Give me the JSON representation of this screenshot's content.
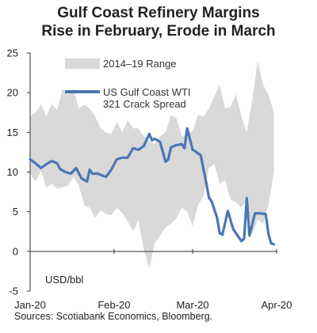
{
  "title_line1": "Gulf Coast Refinery Margins",
  "title_line2": "Rise in February, Erode in March",
  "source": "Sources: Scotiabank Economics, Bloomberg.",
  "chart_data": {
    "type": "area",
    "unit_label": "USD/bbl",
    "y_ticks": [
      "25",
      "20",
      "15",
      "10",
      "5",
      "0",
      "-5"
    ],
    "ylim": [
      -5,
      25
    ],
    "x_ticks": [
      {
        "label": "Jan-20",
        "day": 0
      },
      {
        "label": "Feb-20",
        "day": 31
      },
      {
        "label": "Mar-20",
        "day": 60
      },
      {
        "label": "Apr-20",
        "day": 91
      }
    ],
    "xlim_days": [
      0,
      91
    ],
    "grid": false,
    "legend_position": "top-left",
    "series": [
      {
        "name": "2014–19 Range",
        "kind": "band",
        "color": "#d9d9d9",
        "x_days": [
          0,
          2,
          4,
          6,
          8,
          10,
          12,
          14,
          16,
          18,
          20,
          22,
          24,
          26,
          28,
          30,
          32,
          34,
          36,
          38,
          40,
          42,
          44,
          46,
          48,
          50,
          52,
          54,
          56,
          58,
          60,
          62,
          64,
          66,
          68,
          70,
          72,
          74,
          76,
          78,
          80,
          82,
          84,
          86,
          88,
          90
        ],
        "upper": [
          17,
          17.5,
          18.5,
          17,
          18.6,
          17.8,
          20.5,
          19.8,
          20.5,
          18,
          18.5,
          18,
          17,
          15.5,
          15,
          14.8,
          16.3,
          15,
          16.5,
          15.5,
          15.5,
          14.5,
          14,
          13.5,
          14.5,
          15,
          17.2,
          16.8,
          14.5,
          14.8,
          15.2,
          17.2,
          17,
          18,
          19.5,
          21,
          18,
          18.2,
          19.8,
          17,
          15,
          19,
          24,
          21,
          19.8,
          17.5
        ],
        "lower": [
          9.8,
          8.8,
          10.2,
          8,
          8.5,
          7.9,
          8.1,
          8.3,
          9.4,
          8.3,
          5.8,
          5.5,
          4.2,
          5.2,
          4.7,
          4.6,
          5.5,
          4.9,
          3.8,
          2.5,
          3.9,
          0.2,
          -2.2,
          1,
          2,
          3,
          3.5,
          4.2,
          5.5,
          5,
          3.2,
          5.8,
          7,
          10.5,
          11,
          8.5,
          9,
          6.5,
          6.2,
          5.5,
          6.5,
          2,
          4,
          3.5,
          5.8,
          10
        ]
      },
      {
        "name": "US Gulf Coast WTI 321 Crack Spread",
        "name_line1": "US Gulf Coast WTI",
        "name_line2": "321 Crack Spread",
        "kind": "line",
        "color": "#4a77b4",
        "x_days": [
          0,
          2,
          4,
          6,
          8,
          10,
          11,
          13,
          15,
          17,
          19,
          21,
          22,
          23,
          25,
          27,
          28,
          30,
          32,
          34,
          36,
          38,
          40,
          42,
          44,
          45,
          46,
          48,
          50,
          51,
          52,
          54,
          56,
          57,
          58,
          60,
          61,
          63,
          65,
          66,
          67,
          69,
          70,
          71,
          73,
          75,
          77,
          78,
          79,
          80,
          81,
          83,
          85,
          87,
          88,
          89,
          90
        ],
        "values": [
          11.6,
          11.1,
          10.5,
          11,
          11.4,
          11.1,
          10.4,
          10,
          9.8,
          10.5,
          9.2,
          8.8,
          10.3,
          9.8,
          9.8,
          9.5,
          9.4,
          10.3,
          11.6,
          11.8,
          11.8,
          13,
          12.8,
          13.3,
          14.8,
          14,
          14.2,
          13.8,
          11.3,
          11.6,
          13.1,
          13.4,
          13.5,
          13,
          15.5,
          12.8,
          12.6,
          12.1,
          8.7,
          6.8,
          6.3,
          4.3,
          2.3,
          2.1,
          5.1,
          2.8,
          1.8,
          1.3,
          1.6,
          6.7,
          2,
          4.8,
          4.8,
          4.7,
          2.2,
          1,
          0.9
        ]
      }
    ]
  }
}
